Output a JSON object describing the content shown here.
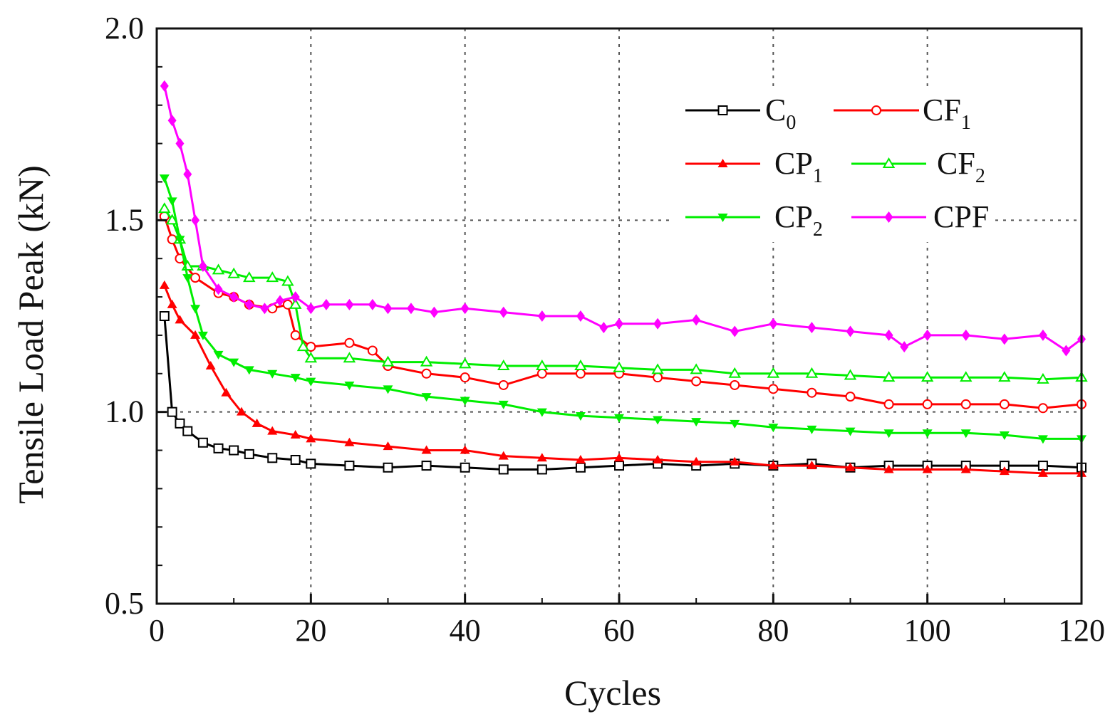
{
  "chart_data": {
    "type": "line",
    "title": "",
    "xlabel": "Cycles",
    "ylabel": "Tensile Load Peak (kN)",
    "xlim": [
      0,
      120
    ],
    "ylim": [
      0.5,
      2.0
    ],
    "xticks": [
      0,
      20,
      40,
      60,
      80,
      100,
      120
    ],
    "yticks_labeled": [
      0.5,
      1.0,
      1.5,
      2.0
    ],
    "ytick_labels": [
      "0.5",
      "1.0",
      "1.5",
      "2.0"
    ],
    "xtick_labels": [
      "0",
      "20",
      "40",
      "60",
      "80",
      "100",
      "120"
    ],
    "grid": true,
    "legend_position": "top-right",
    "series": [
      {
        "name": "C0",
        "label": "C",
        "label_sub": "0",
        "color": "#000000",
        "marker": "square-open",
        "points": [
          [
            1,
            1.25
          ],
          [
            2,
            1.0
          ],
          [
            3,
            0.97
          ],
          [
            4,
            0.95
          ],
          [
            6,
            0.92
          ],
          [
            8,
            0.905
          ],
          [
            10,
            0.9
          ],
          [
            12,
            0.89
          ],
          [
            15,
            0.88
          ],
          [
            18,
            0.875
          ],
          [
            20,
            0.865
          ],
          [
            25,
            0.86
          ],
          [
            30,
            0.855
          ],
          [
            35,
            0.86
          ],
          [
            40,
            0.855
          ],
          [
            45,
            0.85
          ],
          [
            50,
            0.85
          ],
          [
            55,
            0.855
          ],
          [
            60,
            0.86
          ],
          [
            65,
            0.865
          ],
          [
            70,
            0.86
          ],
          [
            75,
            0.865
          ],
          [
            80,
            0.86
          ],
          [
            85,
            0.865
          ],
          [
            90,
            0.855
          ],
          [
            95,
            0.86
          ],
          [
            100,
            0.86
          ],
          [
            105,
            0.86
          ],
          [
            110,
            0.86
          ],
          [
            115,
            0.86
          ],
          [
            120,
            0.855
          ]
        ]
      },
      {
        "name": "CF1",
        "label": "CF",
        "label_sub": "1",
        "color": "#ff0000",
        "marker": "circle-open",
        "points": [
          [
            1,
            1.51
          ],
          [
            2,
            1.45
          ],
          [
            3,
            1.4
          ],
          [
            5,
            1.35
          ],
          [
            8,
            1.31
          ],
          [
            10,
            1.3
          ],
          [
            12,
            1.28
          ],
          [
            15,
            1.27
          ],
          [
            17,
            1.28
          ],
          [
            18,
            1.2
          ],
          [
            20,
            1.17
          ],
          [
            25,
            1.18
          ],
          [
            28,
            1.16
          ],
          [
            30,
            1.12
          ],
          [
            35,
            1.1
          ],
          [
            40,
            1.09
          ],
          [
            45,
            1.07
          ],
          [
            50,
            1.1
          ],
          [
            55,
            1.1
          ],
          [
            60,
            1.1
          ],
          [
            65,
            1.09
          ],
          [
            70,
            1.08
          ],
          [
            75,
            1.07
          ],
          [
            80,
            1.06
          ],
          [
            85,
            1.05
          ],
          [
            90,
            1.04
          ],
          [
            95,
            1.02
          ],
          [
            100,
            1.02
          ],
          [
            105,
            1.02
          ],
          [
            110,
            1.02
          ],
          [
            115,
            1.01
          ],
          [
            120,
            1.02
          ]
        ]
      },
      {
        "name": "CP1",
        "label": "CP",
        "label_sub": "1",
        "color": "#ff0000",
        "marker": "triangle-up-filled",
        "points": [
          [
            1,
            1.33
          ],
          [
            2,
            1.28
          ],
          [
            3,
            1.24
          ],
          [
            5,
            1.2
          ],
          [
            7,
            1.12
          ],
          [
            9,
            1.05
          ],
          [
            11,
            1.0
          ],
          [
            13,
            0.97
          ],
          [
            15,
            0.95
          ],
          [
            18,
            0.94
          ],
          [
            20,
            0.93
          ],
          [
            25,
            0.92
          ],
          [
            30,
            0.91
          ],
          [
            35,
            0.9
          ],
          [
            40,
            0.9
          ],
          [
            45,
            0.885
          ],
          [
            50,
            0.88
          ],
          [
            55,
            0.875
          ],
          [
            60,
            0.88
          ],
          [
            65,
            0.875
          ],
          [
            70,
            0.87
          ],
          [
            75,
            0.87
          ],
          [
            80,
            0.86
          ],
          [
            85,
            0.86
          ],
          [
            90,
            0.855
          ],
          [
            95,
            0.85
          ],
          [
            100,
            0.85
          ],
          [
            105,
            0.85
          ],
          [
            110,
            0.845
          ],
          [
            115,
            0.84
          ],
          [
            120,
            0.84
          ]
        ]
      },
      {
        "name": "CF2",
        "label": "CF",
        "label_sub": "2",
        "color": "#00ee00",
        "marker": "triangle-up-open",
        "points": [
          [
            1,
            1.53
          ],
          [
            2,
            1.5
          ],
          [
            3,
            1.45
          ],
          [
            4,
            1.38
          ],
          [
            6,
            1.38
          ],
          [
            8,
            1.37
          ],
          [
            10,
            1.36
          ],
          [
            12,
            1.35
          ],
          [
            15,
            1.35
          ],
          [
            17,
            1.34
          ],
          [
            18,
            1.28
          ],
          [
            19,
            1.17
          ],
          [
            20,
            1.14
          ],
          [
            25,
            1.14
          ],
          [
            30,
            1.13
          ],
          [
            35,
            1.13
          ],
          [
            40,
            1.125
          ],
          [
            45,
            1.12
          ],
          [
            50,
            1.12
          ],
          [
            55,
            1.12
          ],
          [
            60,
            1.115
          ],
          [
            65,
            1.11
          ],
          [
            70,
            1.11
          ],
          [
            75,
            1.1
          ],
          [
            80,
            1.1
          ],
          [
            85,
            1.1
          ],
          [
            90,
            1.095
          ],
          [
            95,
            1.09
          ],
          [
            100,
            1.09
          ],
          [
            105,
            1.09
          ],
          [
            110,
            1.09
          ],
          [
            115,
            1.085
          ],
          [
            120,
            1.09
          ]
        ]
      },
      {
        "name": "CP2",
        "label": "CP",
        "label_sub": "2",
        "color": "#00ee00",
        "marker": "triangle-down-filled",
        "points": [
          [
            1,
            1.61
          ],
          [
            2,
            1.55
          ],
          [
            3,
            1.45
          ],
          [
            4,
            1.35
          ],
          [
            5,
            1.27
          ],
          [
            6,
            1.2
          ],
          [
            8,
            1.15
          ],
          [
            10,
            1.13
          ],
          [
            12,
            1.11
          ],
          [
            15,
            1.1
          ],
          [
            18,
            1.09
          ],
          [
            20,
            1.08
          ],
          [
            25,
            1.07
          ],
          [
            30,
            1.06
          ],
          [
            35,
            1.04
          ],
          [
            40,
            1.03
          ],
          [
            45,
            1.02
          ],
          [
            50,
            1.0
          ],
          [
            55,
            0.99
          ],
          [
            60,
            0.985
          ],
          [
            65,
            0.98
          ],
          [
            70,
            0.975
          ],
          [
            75,
            0.97
          ],
          [
            80,
            0.96
          ],
          [
            85,
            0.955
          ],
          [
            90,
            0.95
          ],
          [
            95,
            0.945
          ],
          [
            100,
            0.945
          ],
          [
            105,
            0.945
          ],
          [
            110,
            0.94
          ],
          [
            115,
            0.93
          ],
          [
            120,
            0.93
          ]
        ]
      },
      {
        "name": "CPF",
        "label": "CPF",
        "label_sub": "",
        "color": "#ff00ff",
        "marker": "diamond-filled",
        "points": [
          [
            1,
            1.85
          ],
          [
            2,
            1.76
          ],
          [
            3,
            1.7
          ],
          [
            4,
            1.62
          ],
          [
            5,
            1.5
          ],
          [
            6,
            1.38
          ],
          [
            8,
            1.32
          ],
          [
            10,
            1.3
          ],
          [
            12,
            1.28
          ],
          [
            14,
            1.27
          ],
          [
            16,
            1.29
          ],
          [
            18,
            1.3
          ],
          [
            20,
            1.27
          ],
          [
            22,
            1.28
          ],
          [
            25,
            1.28
          ],
          [
            28,
            1.28
          ],
          [
            30,
            1.27
          ],
          [
            33,
            1.27
          ],
          [
            36,
            1.26
          ],
          [
            40,
            1.27
          ],
          [
            45,
            1.26
          ],
          [
            50,
            1.25
          ],
          [
            55,
            1.25
          ],
          [
            58,
            1.22
          ],
          [
            60,
            1.23
          ],
          [
            65,
            1.23
          ],
          [
            70,
            1.24
          ],
          [
            75,
            1.21
          ],
          [
            80,
            1.23
          ],
          [
            85,
            1.22
          ],
          [
            90,
            1.21
          ],
          [
            95,
            1.2
          ],
          [
            97,
            1.17
          ],
          [
            100,
            1.2
          ],
          [
            105,
            1.2
          ],
          [
            110,
            1.19
          ],
          [
            115,
            1.2
          ],
          [
            118,
            1.16
          ],
          [
            120,
            1.19
          ]
        ]
      }
    ]
  }
}
